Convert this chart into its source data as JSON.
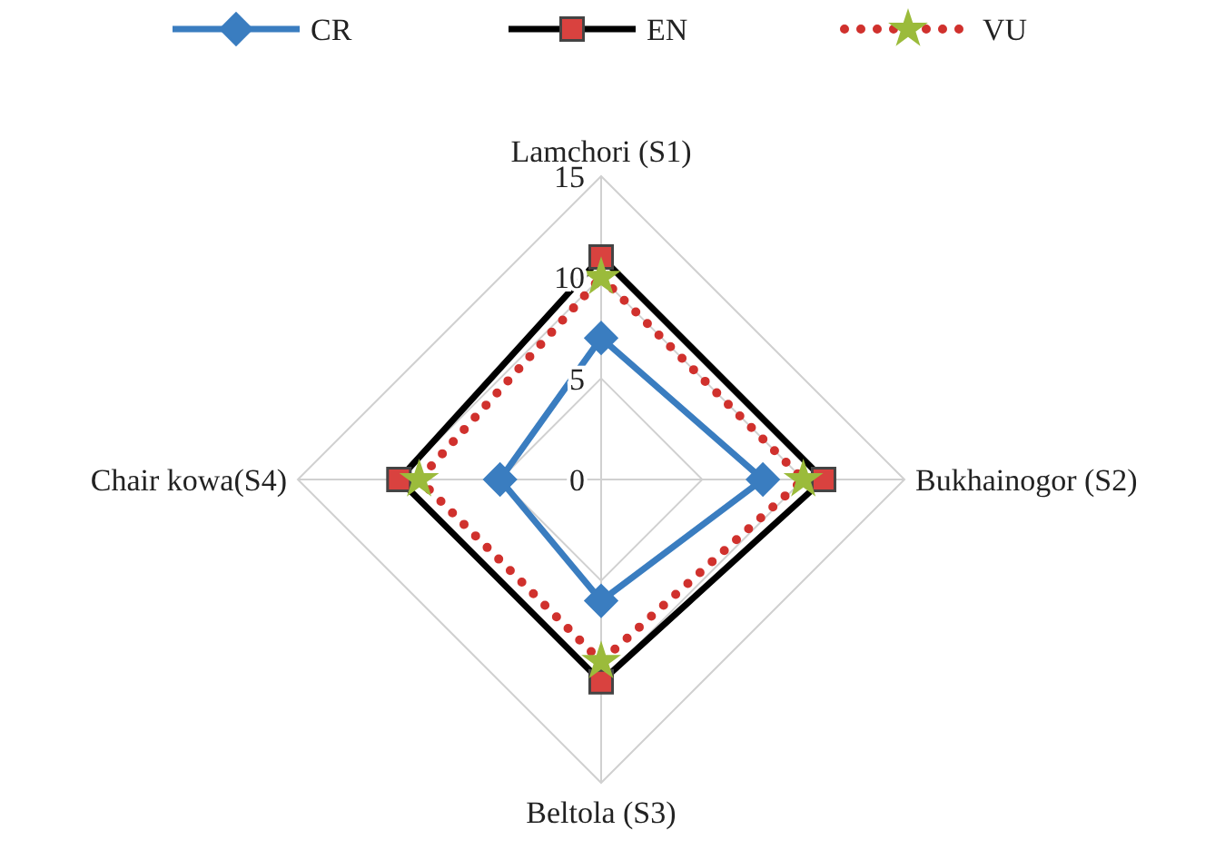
{
  "chart_data": {
    "type": "radar",
    "categories": [
      "Lamchori (S1)",
      "Bukhainogor (S2)",
      "Beltola (S3)",
      "Chair kowa(S4)"
    ],
    "ylim": [
      0,
      15
    ],
    "yticks": [
      0,
      5,
      10,
      15
    ],
    "grid": true,
    "legend": "top",
    "series": [
      {
        "name": "CR",
        "color": "#3a7dc0",
        "values": [
          7,
          8,
          6,
          5
        ],
        "marker": "diamond",
        "line_style": "solid"
      },
      {
        "name": "EN",
        "color": "#000000",
        "values": [
          11,
          11,
          10,
          10
        ],
        "marker": "square",
        "line_style": "solid"
      },
      {
        "name": "VU",
        "color": "#d0312d",
        "values": [
          10,
          10,
          9,
          9
        ],
        "marker": "star",
        "line_style": "dotted"
      }
    ]
  }
}
